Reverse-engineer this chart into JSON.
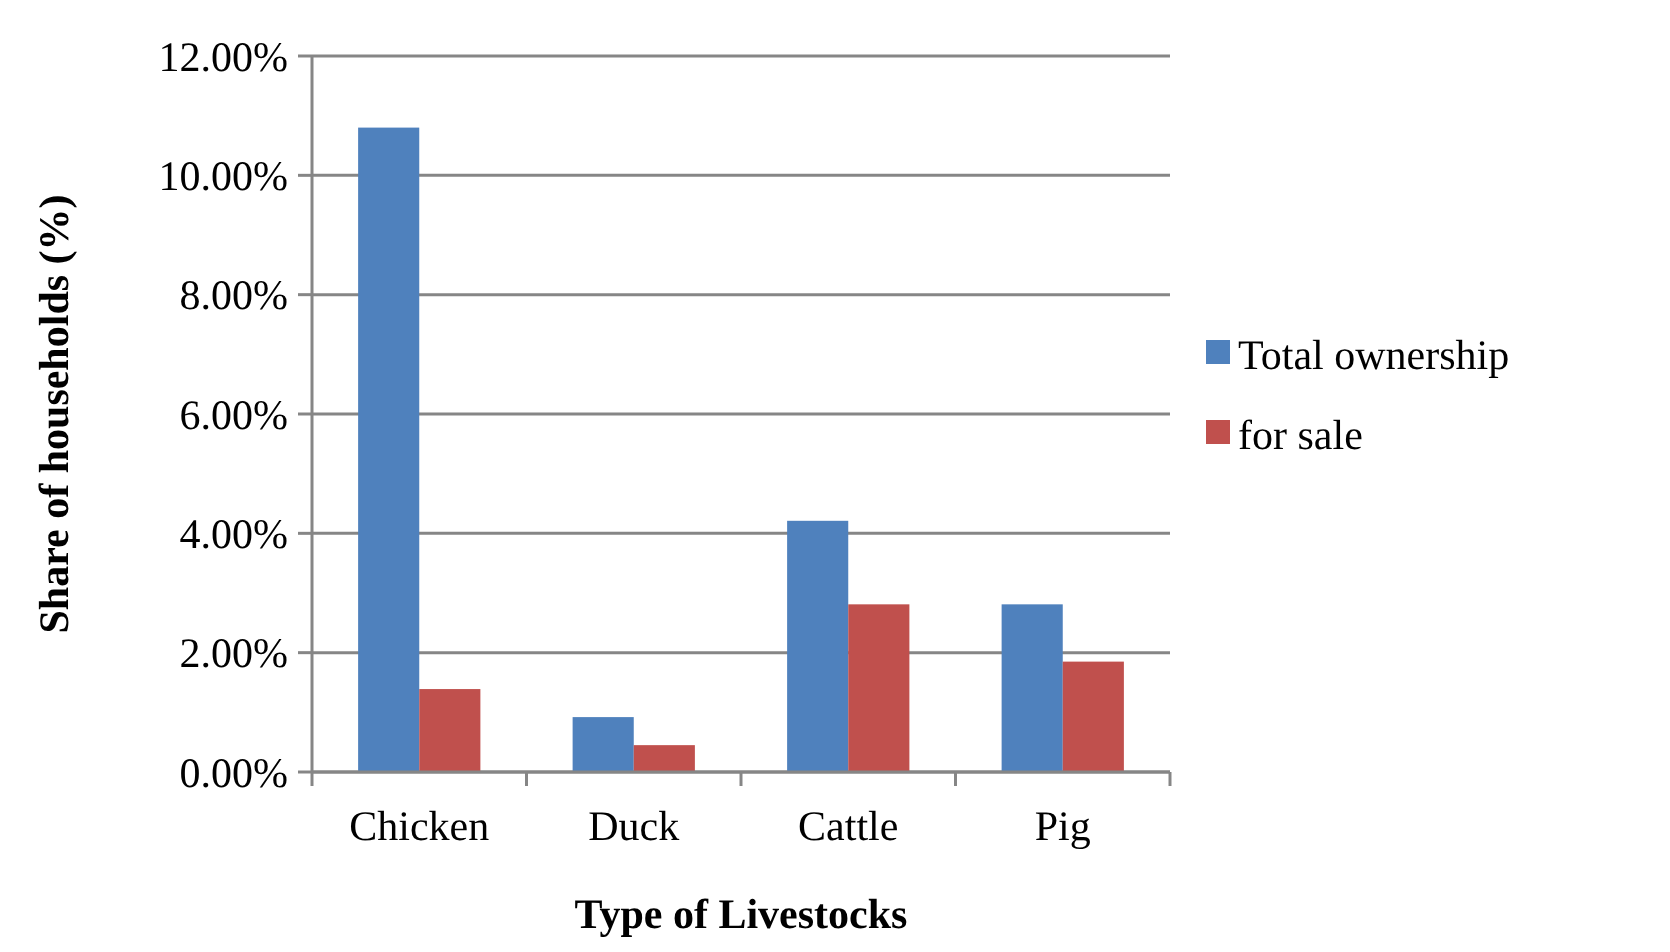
{
  "chart_data": {
    "type": "bar",
    "xlabel": "Type of Livestocks",
    "ylabel": "Share of households (%)",
    "categories": [
      "Chicken",
      "Duck",
      "Cattle",
      "Pig"
    ],
    "series": [
      {
        "name": "Total ownership",
        "color": "#4f81bd",
        "values": [
          10.8,
          0.92,
          4.21,
          2.81
        ]
      },
      {
        "name": "for sale",
        "color": "#c0504d",
        "values": [
          1.39,
          0.45,
          2.81,
          1.85
        ]
      }
    ],
    "ylim": [
      0,
      12
    ],
    "yticks": [
      {
        "value": 0,
        "label": "0.00%"
      },
      {
        "value": 2,
        "label": "2.00%"
      },
      {
        "value": 4,
        "label": "4.00%"
      },
      {
        "value": 6,
        "label": "6.00%"
      },
      {
        "value": 8,
        "label": "8.00%"
      },
      {
        "value": 10,
        "label": "10.00%"
      },
      {
        "value": 12,
        "label": "12.00%"
      }
    ],
    "grid": "y",
    "legend": "right"
  }
}
